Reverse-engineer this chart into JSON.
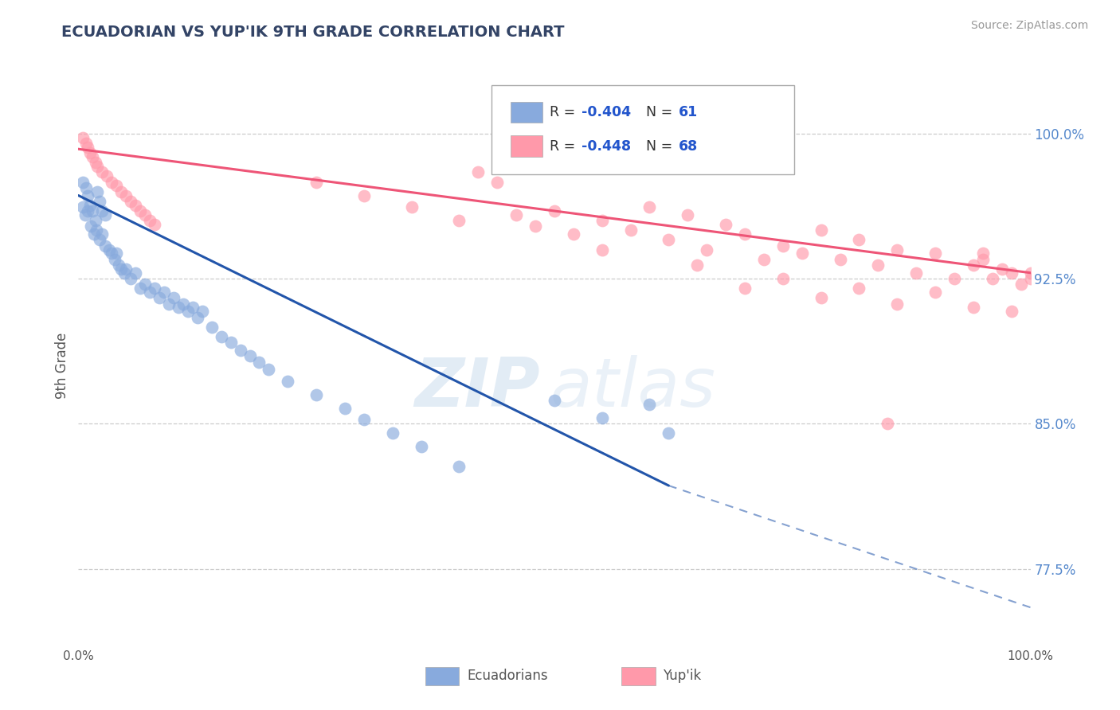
{
  "title": "ECUADORIAN VS YUP'IK 9TH GRADE CORRELATION CHART",
  "source_text": "Source: ZipAtlas.com",
  "ylabel": "9th Grade",
  "ytick_labels": [
    "77.5%",
    "85.0%",
    "92.5%",
    "100.0%"
  ],
  "ytick_values": [
    0.775,
    0.85,
    0.925,
    1.0
  ],
  "xmin": 0.0,
  "xmax": 1.0,
  "ymin": 0.735,
  "ymax": 1.025,
  "blue_color": "#88AADD",
  "pink_color": "#FF99AA",
  "blue_line_color": "#2255AA",
  "pink_line_color": "#EE5577",
  "blue_scatter_x": [
    0.005,
    0.008,
    0.01,
    0.012,
    0.015,
    0.018,
    0.02,
    0.022,
    0.025,
    0.028,
    0.005,
    0.007,
    0.01,
    0.013,
    0.016,
    0.019,
    0.022,
    0.025,
    0.028,
    0.032,
    0.035,
    0.038,
    0.04,
    0.042,
    0.045,
    0.048,
    0.05,
    0.055,
    0.06,
    0.065,
    0.07,
    0.075,
    0.08,
    0.085,
    0.09,
    0.095,
    0.1,
    0.105,
    0.11,
    0.115,
    0.12,
    0.125,
    0.13,
    0.14,
    0.15,
    0.16,
    0.17,
    0.18,
    0.19,
    0.2,
    0.22,
    0.25,
    0.28,
    0.3,
    0.33,
    0.36,
    0.4,
    0.5,
    0.55,
    0.6,
    0.62
  ],
  "blue_scatter_y": [
    0.975,
    0.972,
    0.968,
    0.963,
    0.96,
    0.955,
    0.97,
    0.965,
    0.96,
    0.958,
    0.962,
    0.958,
    0.96,
    0.952,
    0.948,
    0.95,
    0.945,
    0.948,
    0.942,
    0.94,
    0.938,
    0.935,
    0.938,
    0.932,
    0.93,
    0.928,
    0.93,
    0.925,
    0.928,
    0.92,
    0.922,
    0.918,
    0.92,
    0.915,
    0.918,
    0.912,
    0.915,
    0.91,
    0.912,
    0.908,
    0.91,
    0.905,
    0.908,
    0.9,
    0.895,
    0.892,
    0.888,
    0.885,
    0.882,
    0.878,
    0.872,
    0.865,
    0.858,
    0.852,
    0.845,
    0.838,
    0.828,
    0.862,
    0.853,
    0.86,
    0.845
  ],
  "pink_scatter_x": [
    0.005,
    0.008,
    0.01,
    0.012,
    0.015,
    0.018,
    0.02,
    0.025,
    0.03,
    0.035,
    0.04,
    0.045,
    0.05,
    0.055,
    0.06,
    0.065,
    0.07,
    0.075,
    0.08,
    0.25,
    0.3,
    0.35,
    0.4,
    0.42,
    0.44,
    0.46,
    0.48,
    0.5,
    0.52,
    0.55,
    0.58,
    0.6,
    0.62,
    0.64,
    0.66,
    0.68,
    0.7,
    0.72,
    0.74,
    0.76,
    0.78,
    0.8,
    0.82,
    0.84,
    0.86,
    0.88,
    0.9,
    0.92,
    0.94,
    0.95,
    0.96,
    0.97,
    0.98,
    0.99,
    1.0,
    0.7,
    0.74,
    0.78,
    0.82,
    0.86,
    0.9,
    0.94,
    0.98,
    0.55,
    0.65,
    0.85,
    0.95,
    1.0
  ],
  "pink_scatter_y": [
    0.998,
    0.995,
    0.993,
    0.99,
    0.988,
    0.985,
    0.983,
    0.98,
    0.978,
    0.975,
    0.973,
    0.97,
    0.968,
    0.965,
    0.963,
    0.96,
    0.958,
    0.955,
    0.953,
    0.975,
    0.968,
    0.962,
    0.955,
    0.98,
    0.975,
    0.958,
    0.952,
    0.96,
    0.948,
    0.955,
    0.95,
    0.962,
    0.945,
    0.958,
    0.94,
    0.953,
    0.948,
    0.935,
    0.942,
    0.938,
    0.95,
    0.935,
    0.945,
    0.932,
    0.94,
    0.928,
    0.938,
    0.925,
    0.932,
    0.938,
    0.925,
    0.93,
    0.928,
    0.922,
    0.928,
    0.92,
    0.925,
    0.915,
    0.92,
    0.912,
    0.918,
    0.91,
    0.908,
    0.94,
    0.932,
    0.85,
    0.935,
    0.925
  ],
  "blue_line_y_start": 0.968,
  "blue_line_y_solid_end_x": 0.62,
  "blue_line_y_solid_end": 0.818,
  "blue_line_y_end": 0.755,
  "pink_line_y_start": 0.992,
  "pink_line_y_end": 0.928,
  "watermark_zip": "ZIP",
  "watermark_atlas": "atlas",
  "background_color": "#ffffff",
  "grid_color": "#cccccc"
}
